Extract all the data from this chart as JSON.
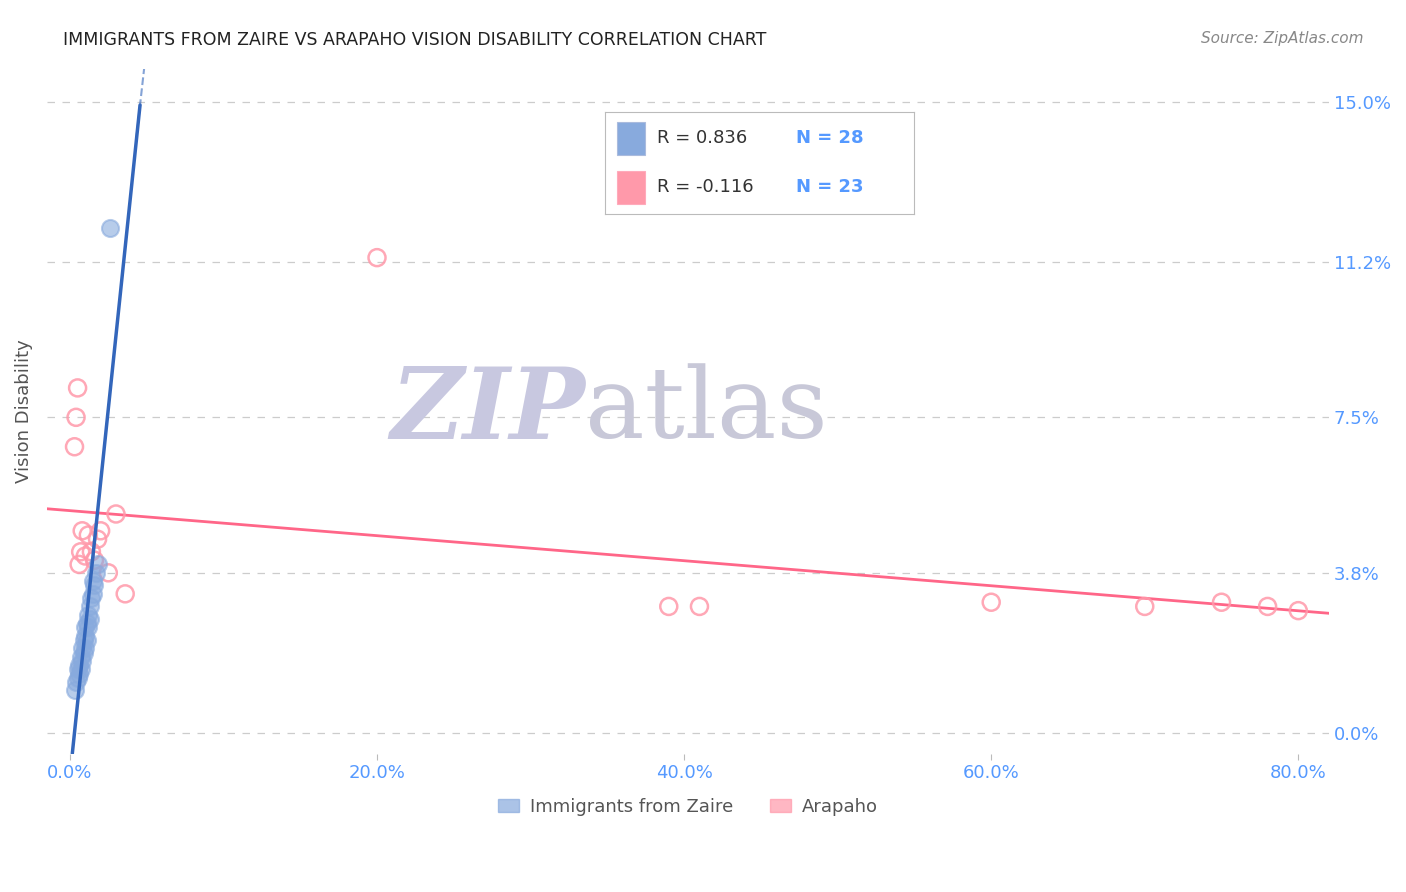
{
  "title": "IMMIGRANTS FROM ZAIRE VS ARAPAHO VISION DISABILITY CORRELATION CHART",
  "source": "Source: ZipAtlas.com",
  "xlabel_ticks": [
    "0.0%",
    "20.0%",
    "40.0%",
    "60.0%",
    "80.0%"
  ],
  "xlabel_tick_vals": [
    0.0,
    0.2,
    0.4,
    0.6,
    0.8
  ],
  "ylabel_ticks": [
    "0.0%",
    "3.8%",
    "7.5%",
    "11.2%",
    "15.0%"
  ],
  "ylabel_tick_vals": [
    0.0,
    0.038,
    0.075,
    0.112,
    0.15
  ],
  "ylabel": "Vision Disability",
  "legend_label1": "Immigrants from Zaire",
  "legend_label2": "Arapaho",
  "color_blue": "#88AADD",
  "color_blue_fill": "#88AADD",
  "color_pink": "#FF99AA",
  "color_blue_line": "#3366BB",
  "color_pink_line": "#FF6688",
  "color_axis_blue": "#5599FF",
  "watermark_zip_color": "#C8C8E0",
  "watermark_atlas_color": "#C8C8D8",
  "blue_x": [
    0.003,
    0.004,
    0.005,
    0.005,
    0.006,
    0.006,
    0.007,
    0.007,
    0.008,
    0.008,
    0.009,
    0.009,
    0.01,
    0.01,
    0.01,
    0.011,
    0.011,
    0.012,
    0.012,
    0.013,
    0.013,
    0.014,
    0.015,
    0.015,
    0.016,
    0.017,
    0.018,
    0.026
  ],
  "blue_y": [
    0.01,
    0.012,
    0.013,
    0.015,
    0.014,
    0.016,
    0.015,
    0.018,
    0.017,
    0.02,
    0.019,
    0.022,
    0.02,
    0.023,
    0.025,
    0.022,
    0.026,
    0.025,
    0.028,
    0.027,
    0.03,
    0.032,
    0.033,
    0.036,
    0.035,
    0.038,
    0.04,
    0.12
  ],
  "pink_x": [
    0.003,
    0.004,
    0.005,
    0.006,
    0.007,
    0.008,
    0.01,
    0.012,
    0.014,
    0.016,
    0.018,
    0.02,
    0.025,
    0.03,
    0.036,
    0.2,
    0.39,
    0.41,
    0.6,
    0.7,
    0.75,
    0.78,
    0.8
  ],
  "pink_y": [
    0.068,
    0.075,
    0.082,
    0.04,
    0.043,
    0.048,
    0.042,
    0.047,
    0.043,
    0.041,
    0.046,
    0.048,
    0.038,
    0.052,
    0.033,
    0.113,
    0.03,
    0.03,
    0.031,
    0.03,
    0.031,
    0.03,
    0.029
  ],
  "xlim": [
    -0.015,
    0.82
  ],
  "ylim": [
    -0.005,
    0.158
  ],
  "grid_color": "#CCCCCC",
  "grid_linestyle": "--"
}
